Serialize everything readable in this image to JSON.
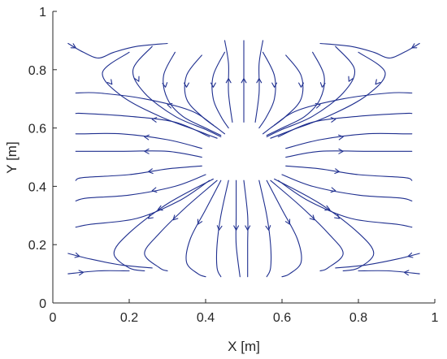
{
  "chart_data": {
    "type": "streamline",
    "title": "",
    "xlabel": "X [m]",
    "ylabel": "Y [m]",
    "xlim": [
      0,
      1
    ],
    "ylim": [
      0,
      1
    ],
    "xticks": [
      0,
      0.2,
      0.4,
      0.6,
      0.8,
      1
    ],
    "yticks": [
      0,
      0.2,
      0.4,
      0.6,
      0.8,
      1
    ],
    "xtick_labels": [
      "0",
      "0.2",
      "0.4",
      "0.6",
      "0.8",
      "1"
    ],
    "ytick_labels": [
      "0",
      "0.2",
      "0.4",
      "0.6",
      "0.8",
      "1"
    ],
    "grid": false,
    "line_color": "#1f2f8f",
    "streamlines": [
      {
        "points": [
          [
            0.32,
            0.86
          ],
          [
            0.29,
            0.78
          ],
          [
            0.3,
            0.7
          ],
          [
            0.34,
            0.64
          ],
          [
            0.4,
            0.6
          ],
          [
            0.44,
            0.575
          ]
        ],
        "arrow_at": 2
      },
      {
        "points": [
          [
            0.39,
            0.85
          ],
          [
            0.35,
            0.78
          ],
          [
            0.35,
            0.7
          ],
          [
            0.39,
            0.64
          ],
          [
            0.43,
            0.6
          ],
          [
            0.45,
            0.58
          ]
        ],
        "arrow_at": 2
      },
      {
        "points": [
          [
            0.45,
            0.86
          ],
          [
            0.42,
            0.78
          ],
          [
            0.42,
            0.7
          ],
          [
            0.44,
            0.64
          ],
          [
            0.46,
            0.6
          ]
        ],
        "arrow_at": 2
      },
      {
        "points": [
          [
            0.26,
            0.88
          ],
          [
            0.21,
            0.8
          ],
          [
            0.24,
            0.72
          ],
          [
            0.32,
            0.64
          ],
          [
            0.4,
            0.595
          ],
          [
            0.44,
            0.57
          ]
        ],
        "arrow_at": 2
      },
      {
        "points": [
          [
            0.2,
            0.86
          ],
          [
            0.13,
            0.79
          ],
          [
            0.18,
            0.71
          ],
          [
            0.28,
            0.64
          ],
          [
            0.38,
            0.59
          ],
          [
            0.43,
            0.565
          ]
        ],
        "arrow_at": 2
      },
      {
        "points": [
          [
            0.42,
            0.61
          ],
          [
            0.36,
            0.66
          ],
          [
            0.24,
            0.7
          ],
          [
            0.12,
            0.72
          ],
          [
            0.06,
            0.72
          ]
        ],
        "arrow_at": 2
      },
      {
        "points": [
          [
            0.41,
            0.57
          ],
          [
            0.32,
            0.62
          ],
          [
            0.2,
            0.64
          ],
          [
            0.08,
            0.65
          ],
          [
            0.06,
            0.65
          ]
        ],
        "arrow_at": 2
      },
      {
        "points": [
          [
            0.39,
            0.53
          ],
          [
            0.3,
            0.56
          ],
          [
            0.18,
            0.58
          ],
          [
            0.08,
            0.58
          ],
          [
            0.06,
            0.58
          ]
        ],
        "arrow_at": 2
      },
      {
        "points": [
          [
            0.39,
            0.5
          ],
          [
            0.3,
            0.52
          ],
          [
            0.18,
            0.52
          ],
          [
            0.1,
            0.52
          ],
          [
            0.06,
            0.52
          ]
        ],
        "arrow_at": 2
      },
      {
        "points": [
          [
            0.39,
            0.47
          ],
          [
            0.3,
            0.46
          ],
          [
            0.2,
            0.44
          ],
          [
            0.08,
            0.43
          ],
          [
            0.06,
            0.42
          ]
        ],
        "arrow_at": 2
      },
      {
        "points": [
          [
            0.4,
            0.44
          ],
          [
            0.32,
            0.4
          ],
          [
            0.2,
            0.37
          ],
          [
            0.09,
            0.36
          ],
          [
            0.06,
            0.35
          ]
        ],
        "arrow_at": 2
      },
      {
        "points": [
          [
            0.41,
            0.42
          ],
          [
            0.33,
            0.35
          ],
          [
            0.22,
            0.29
          ],
          [
            0.1,
            0.27
          ],
          [
            0.06,
            0.26
          ]
        ],
        "arrow_at": 2
      },
      {
        "points": [
          [
            0.43,
            0.42
          ],
          [
            0.35,
            0.33
          ],
          [
            0.28,
            0.24
          ],
          [
            0.24,
            0.17
          ],
          [
            0.28,
            0.12
          ],
          [
            0.3,
            0.11
          ]
        ],
        "arrow_at": 2
      },
      {
        "points": [
          [
            0.44,
            0.42
          ],
          [
            0.4,
            0.32
          ],
          [
            0.36,
            0.22
          ],
          [
            0.35,
            0.14
          ],
          [
            0.38,
            0.1
          ],
          [
            0.4,
            0.09
          ]
        ],
        "arrow_at": 2
      },
      {
        "points": [
          [
            0.46,
            0.42
          ],
          [
            0.44,
            0.3
          ],
          [
            0.43,
            0.2
          ],
          [
            0.43,
            0.12
          ],
          [
            0.44,
            0.09
          ]
        ],
        "arrow_at": 2
      },
      {
        "points": [
          [
            0.48,
            0.42
          ],
          [
            0.48,
            0.3
          ],
          [
            0.48,
            0.2
          ],
          [
            0.49,
            0.09
          ]
        ],
        "arrow_at": 2
      },
      {
        "points": [
          [
            0.5,
            0.42
          ],
          [
            0.51,
            0.3
          ],
          [
            0.51,
            0.2
          ],
          [
            0.51,
            0.09
          ]
        ],
        "arrow_at": 2
      },
      {
        "points": [
          [
            0.42,
            0.425
          ],
          [
            0.3,
            0.34
          ],
          [
            0.2,
            0.24
          ],
          [
            0.16,
            0.17
          ],
          [
            0.2,
            0.12
          ],
          [
            0.24,
            0.11
          ]
        ],
        "arrow_at": 2
      },
      {
        "points": [
          [
            0.68,
            0.86
          ],
          [
            0.71,
            0.78
          ],
          [
            0.7,
            0.7
          ],
          [
            0.66,
            0.64
          ],
          [
            0.6,
            0.6
          ],
          [
            0.56,
            0.575
          ]
        ],
        "arrow_at": 2
      },
      {
        "points": [
          [
            0.61,
            0.85
          ],
          [
            0.65,
            0.78
          ],
          [
            0.65,
            0.7
          ],
          [
            0.61,
            0.64
          ],
          [
            0.57,
            0.6
          ],
          [
            0.55,
            0.58
          ]
        ],
        "arrow_at": 2
      },
      {
        "points": [
          [
            0.55,
            0.86
          ],
          [
            0.58,
            0.78
          ],
          [
            0.58,
            0.7
          ],
          [
            0.56,
            0.64
          ],
          [
            0.54,
            0.6
          ]
        ],
        "arrow_at": 2
      },
      {
        "points": [
          [
            0.74,
            0.88
          ],
          [
            0.79,
            0.8
          ],
          [
            0.76,
            0.72
          ],
          [
            0.68,
            0.64
          ],
          [
            0.6,
            0.595
          ],
          [
            0.56,
            0.57
          ]
        ],
        "arrow_at": 2
      },
      {
        "points": [
          [
            0.8,
            0.86
          ],
          [
            0.87,
            0.79
          ],
          [
            0.82,
            0.71
          ],
          [
            0.72,
            0.64
          ],
          [
            0.62,
            0.59
          ],
          [
            0.57,
            0.565
          ]
        ],
        "arrow_at": 2
      },
      {
        "points": [
          [
            0.58,
            0.61
          ],
          [
            0.64,
            0.66
          ],
          [
            0.76,
            0.7
          ],
          [
            0.88,
            0.72
          ],
          [
            0.94,
            0.72
          ]
        ],
        "arrow_at": 2
      },
      {
        "points": [
          [
            0.59,
            0.57
          ],
          [
            0.68,
            0.62
          ],
          [
            0.8,
            0.64
          ],
          [
            0.92,
            0.65
          ],
          [
            0.94,
            0.65
          ]
        ],
        "arrow_at": 2
      },
      {
        "points": [
          [
            0.61,
            0.53
          ],
          [
            0.7,
            0.56
          ],
          [
            0.82,
            0.58
          ],
          [
            0.92,
            0.58
          ],
          [
            0.94,
            0.58
          ]
        ],
        "arrow_at": 2
      },
      {
        "points": [
          [
            0.61,
            0.5
          ],
          [
            0.7,
            0.52
          ],
          [
            0.82,
            0.52
          ],
          [
            0.9,
            0.52
          ],
          [
            0.94,
            0.52
          ]
        ],
        "arrow_at": 2
      },
      {
        "points": [
          [
            0.61,
            0.47
          ],
          [
            0.7,
            0.46
          ],
          [
            0.8,
            0.44
          ],
          [
            0.92,
            0.43
          ],
          [
            0.94,
            0.42
          ]
        ],
        "arrow_at": 2
      },
      {
        "points": [
          [
            0.6,
            0.44
          ],
          [
            0.68,
            0.4
          ],
          [
            0.8,
            0.37
          ],
          [
            0.91,
            0.36
          ],
          [
            0.94,
            0.35
          ]
        ],
        "arrow_at": 2
      },
      {
        "points": [
          [
            0.59,
            0.42
          ],
          [
            0.67,
            0.35
          ],
          [
            0.78,
            0.29
          ],
          [
            0.9,
            0.27
          ],
          [
            0.94,
            0.26
          ]
        ],
        "arrow_at": 2
      },
      {
        "points": [
          [
            0.57,
            0.42
          ],
          [
            0.65,
            0.33
          ],
          [
            0.72,
            0.24
          ],
          [
            0.76,
            0.17
          ],
          [
            0.72,
            0.12
          ],
          [
            0.7,
            0.11
          ]
        ],
        "arrow_at": 2
      },
      {
        "points": [
          [
            0.56,
            0.42
          ],
          [
            0.6,
            0.32
          ],
          [
            0.64,
            0.22
          ],
          [
            0.65,
            0.14
          ],
          [
            0.62,
            0.1
          ],
          [
            0.6,
            0.09
          ]
        ],
        "arrow_at": 2
      },
      {
        "points": [
          [
            0.54,
            0.42
          ],
          [
            0.56,
            0.3
          ],
          [
            0.57,
            0.2
          ],
          [
            0.57,
            0.12
          ],
          [
            0.56,
            0.09
          ]
        ],
        "arrow_at": 2
      },
      {
        "points": [
          [
            0.58,
            0.425
          ],
          [
            0.7,
            0.34
          ],
          [
            0.8,
            0.24
          ],
          [
            0.84,
            0.17
          ],
          [
            0.8,
            0.12
          ],
          [
            0.76,
            0.11
          ]
        ],
        "arrow_at": 2
      },
      {
        "points": [
          [
            0.04,
            0.89
          ],
          [
            0.08,
            0.86
          ],
          [
            0.12,
            0.84
          ],
          [
            0.16,
            0.86
          ],
          [
            0.22,
            0.88
          ],
          [
            0.3,
            0.89
          ]
        ],
        "arrow_at": 1
      },
      {
        "points": [
          [
            0.96,
            0.89
          ],
          [
            0.92,
            0.86
          ],
          [
            0.88,
            0.84
          ],
          [
            0.84,
            0.86
          ],
          [
            0.78,
            0.88
          ],
          [
            0.7,
            0.89
          ]
        ],
        "arrow_at": 1
      },
      {
        "points": [
          [
            0.04,
            0.17
          ],
          [
            0.1,
            0.15
          ],
          [
            0.18,
            0.13
          ],
          [
            0.26,
            0.12
          ]
        ],
        "arrow_at": 1
      },
      {
        "points": [
          [
            0.96,
            0.17
          ],
          [
            0.9,
            0.15
          ],
          [
            0.82,
            0.13
          ],
          [
            0.74,
            0.12
          ]
        ],
        "arrow_at": 1
      },
      {
        "points": [
          [
            0.04,
            0.1
          ],
          [
            0.12,
            0.11
          ],
          [
            0.2,
            0.11
          ]
        ],
        "arrow_at": 1
      },
      {
        "points": [
          [
            0.96,
            0.1
          ],
          [
            0.88,
            0.11
          ],
          [
            0.8,
            0.11
          ]
        ],
        "arrow_at": 1
      },
      {
        "points": [
          [
            0.5,
            0.62
          ],
          [
            0.5,
            0.72
          ],
          [
            0.5,
            0.82
          ],
          [
            0.5,
            0.9
          ]
        ],
        "arrow_at": 2
      },
      {
        "points": [
          [
            0.47,
            0.62
          ],
          [
            0.46,
            0.72
          ],
          [
            0.46,
            0.82
          ],
          [
            0.45,
            0.9
          ]
        ],
        "arrow_at": 2
      },
      {
        "points": [
          [
            0.53,
            0.62
          ],
          [
            0.54,
            0.72
          ],
          [
            0.54,
            0.82
          ],
          [
            0.55,
            0.9
          ]
        ],
        "arrow_at": 2
      }
    ]
  }
}
